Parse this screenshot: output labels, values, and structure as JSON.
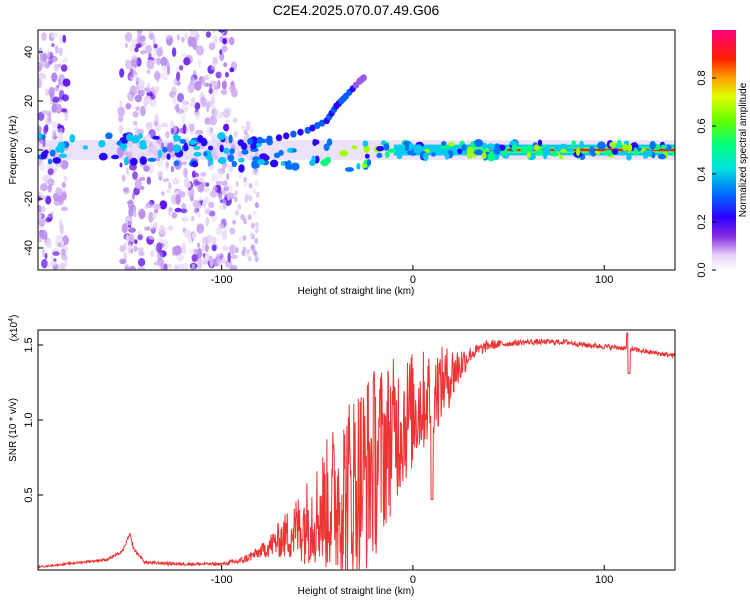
{
  "title": "C2E4.2025.070.07.49.G06",
  "chart_data": [
    {
      "type": "heatmap",
      "name": "spectrogram",
      "xlabel": "Height of straight line (km)",
      "ylabel": "Frequency (Hz)",
      "xlim": [
        -196,
        137
      ],
      "ylim": [
        -49,
        49
      ],
      "xticks": [
        -100,
        0,
        100
      ],
      "xtick_labels": [
        "-100",
        "0",
        "100"
      ],
      "yticks": [
        -40,
        -20,
        0,
        20,
        40
      ],
      "ytick_labels": [
        "-40",
        "-20",
        "0",
        "20",
        "40"
      ],
      "colorbar": {
        "label": "Normalized spectral amplitude",
        "range": [
          0,
          1
        ],
        "ticks": [
          0.0,
          0.2,
          0.4,
          0.6,
          0.8
        ],
        "tick_labels": [
          "0.0",
          "0.2",
          "0.4",
          "0.6",
          "0.8"
        ],
        "colors": [
          "#ffffff",
          "#e8d8f8",
          "#8000ff",
          "#0000ff",
          "#00c0ff",
          "#00ff80",
          "#80ff00",
          "#ffff00",
          "#ff8000",
          "#ff0000",
          "#ff0080"
        ]
      },
      "features": {
        "noise_bands_km": [
          [
            -196,
            -181
          ],
          [
            -153,
            -93
          ]
        ],
        "main_band_freq_hz": 0,
        "strong_line_start_km": 30,
        "curved_branch": [
          [
            -90,
            3
          ],
          [
            -70,
            5
          ],
          [
            -55,
            8
          ],
          [
            -45,
            12
          ],
          [
            -40,
            18
          ],
          [
            -35,
            22
          ],
          [
            -28,
            28
          ],
          [
            -25,
            30
          ]
        ]
      }
    },
    {
      "type": "line",
      "name": "snr",
      "xlabel": "Height of straight line (km)",
      "ylabel": "SNR (10 * v/v)",
      "multiplier_label": "(x10",
      "multiplier_exp": "4",
      "xlim": [
        -196,
        137
      ],
      "ylim": [
        0,
        1.6
      ],
      "xticks": [
        -100,
        0,
        100
      ],
      "xtick_labels": [
        "-100",
        "0",
        "100"
      ],
      "yticks": [
        0.5,
        1.0,
        1.5
      ],
      "ytick_labels": [
        "0.5",
        "1.0",
        "1.5"
      ],
      "color": "#ee3333",
      "envelope": {
        "x": [
          -196,
          -160,
          -152,
          -148,
          -146,
          -140,
          -120,
          -100,
          -90,
          -80,
          -70,
          -60,
          -50,
          -40,
          -30,
          -20,
          -10,
          0,
          10,
          20,
          30,
          40,
          50,
          60,
          70,
          80,
          90,
          100,
          110,
          120,
          130,
          137
        ],
        "y": [
          0.02,
          0.07,
          0.12,
          0.24,
          0.14,
          0.05,
          0.04,
          0.04,
          0.06,
          0.12,
          0.2,
          0.28,
          0.38,
          0.48,
          0.56,
          0.72,
          0.92,
          1.06,
          1.18,
          1.3,
          1.44,
          1.5,
          1.51,
          1.52,
          1.52,
          1.52,
          1.5,
          1.49,
          1.48,
          1.46,
          1.44,
          1.43
        ]
      },
      "noise_amplitude": {
        "x": [
          -196,
          -150,
          -100,
          -80,
          -70,
          -50,
          -40,
          -30,
          -20,
          -10,
          0,
          10,
          20,
          30,
          50,
          137
        ],
        "y": [
          0.005,
          0.01,
          0.01,
          0.04,
          0.12,
          0.35,
          0.55,
          0.7,
          0.65,
          0.5,
          0.4,
          0.3,
          0.2,
          0.05,
          0.02,
          0.015
        ]
      },
      "dips": [
        [
          10,
          0.47
        ],
        [
          113,
          1.31
        ]
      ],
      "spikes": [
        [
          112,
          1.58
        ]
      ]
    }
  ]
}
